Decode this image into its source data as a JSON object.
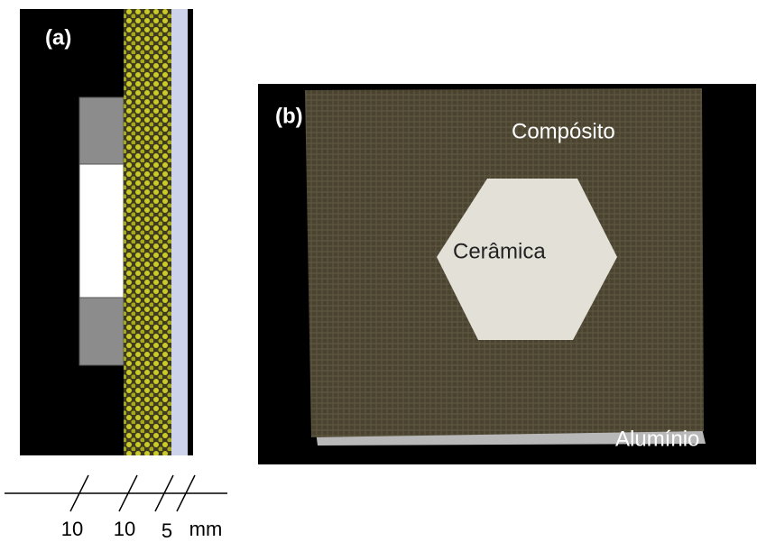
{
  "panel_a": {
    "label": "(a)",
    "scale": [
      "10",
      "10",
      "5",
      "mm"
    ]
  },
  "panel_b": {
    "label": "(b)",
    "composite": "Compósito",
    "ceramic": "Cerâmica",
    "aluminum": "Alumínio"
  }
}
